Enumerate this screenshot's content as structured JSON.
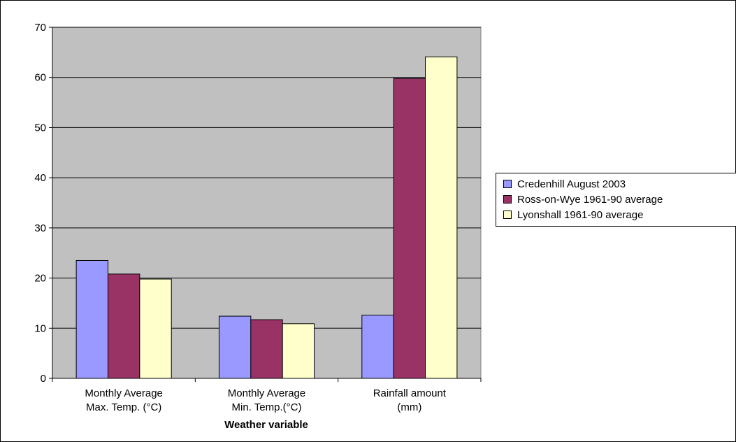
{
  "chart_data": {
    "type": "bar",
    "xlabel": "Weather variable",
    "ylabel": "",
    "ylim": [
      0,
      70
    ],
    "yticks": [
      0,
      10,
      20,
      30,
      40,
      50,
      60,
      70
    ],
    "grid": true,
    "legend_position": "right",
    "plot_background": "#c0c0c0",
    "categories": [
      [
        "Monthly Average",
        "Max. Temp. (°C)"
      ],
      [
        "Monthly Average",
        "Min. Temp.(°C)"
      ],
      [
        "Rainfall amount",
        "(mm)"
      ]
    ],
    "series": [
      {
        "name": "Credenhill August 2003",
        "color": "#9999ff",
        "values": [
          23.5,
          12.4,
          12.6
        ]
      },
      {
        "name": "Ross-on-Wye 1961-90 average",
        "color": "#993366",
        "values": [
          20.8,
          11.7,
          59.8
        ]
      },
      {
        "name": "Lyonshall 1961-90 average",
        "color": "#ffffcc",
        "values": [
          19.8,
          10.9,
          64.1
        ]
      }
    ]
  }
}
